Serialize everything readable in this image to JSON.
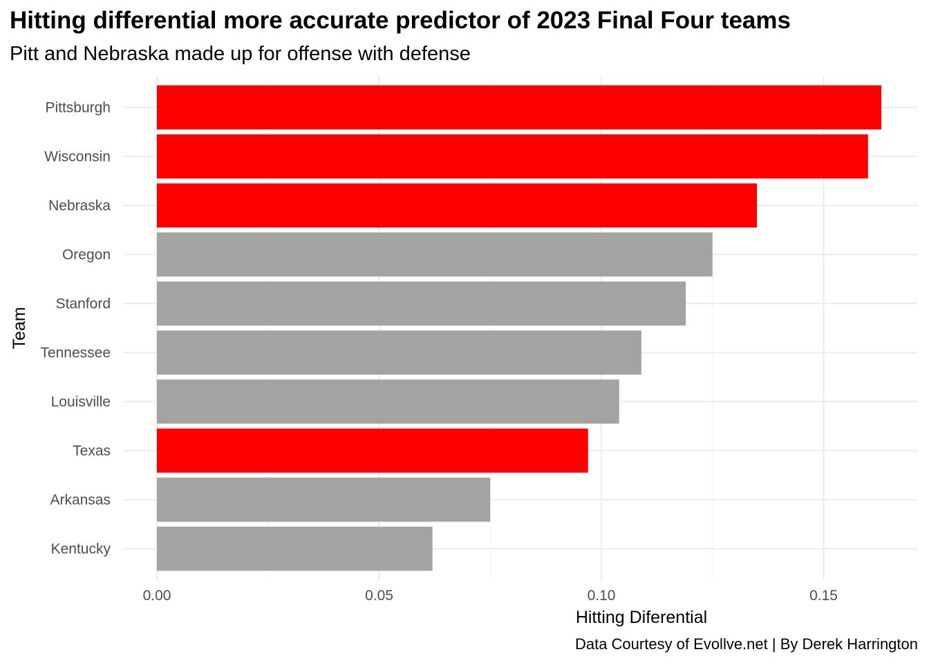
{
  "chart_data": {
    "type": "bar",
    "orientation": "horizontal",
    "title": "Hitting differential more accurate predictor of 2023 Final Four teams",
    "subtitle": "Pitt and Nebraska made up for offense with defense",
    "caption": "Data Courtesy of Evollve.net | By Derek Harrington",
    "xlabel": "Hitting Diferential",
    "ylabel": "Team",
    "xlim": [
      0,
      0.17
    ],
    "xticks": [
      "0.00",
      "0.05",
      "0.10",
      "0.15"
    ],
    "xtick_values": [
      0,
      0.05,
      0.1,
      0.15
    ],
    "categories": [
      "Pittsburgh",
      "Wisconsin",
      "Nebraska",
      "Oregon",
      "Stanford",
      "Tennessee",
      "Louisville",
      "Texas",
      "Arkansas",
      "Kentucky"
    ],
    "values": [
      0.163,
      0.16,
      0.135,
      0.125,
      0.119,
      0.109,
      0.104,
      0.097,
      0.075,
      0.062
    ],
    "highlight": [
      true,
      true,
      true,
      false,
      false,
      false,
      false,
      true,
      false,
      false
    ],
    "colors": {
      "highlight": "#ff0000",
      "other": "#a3a3a3",
      "grid": "#ebebeb"
    },
    "grid": true,
    "legend": "none"
  }
}
